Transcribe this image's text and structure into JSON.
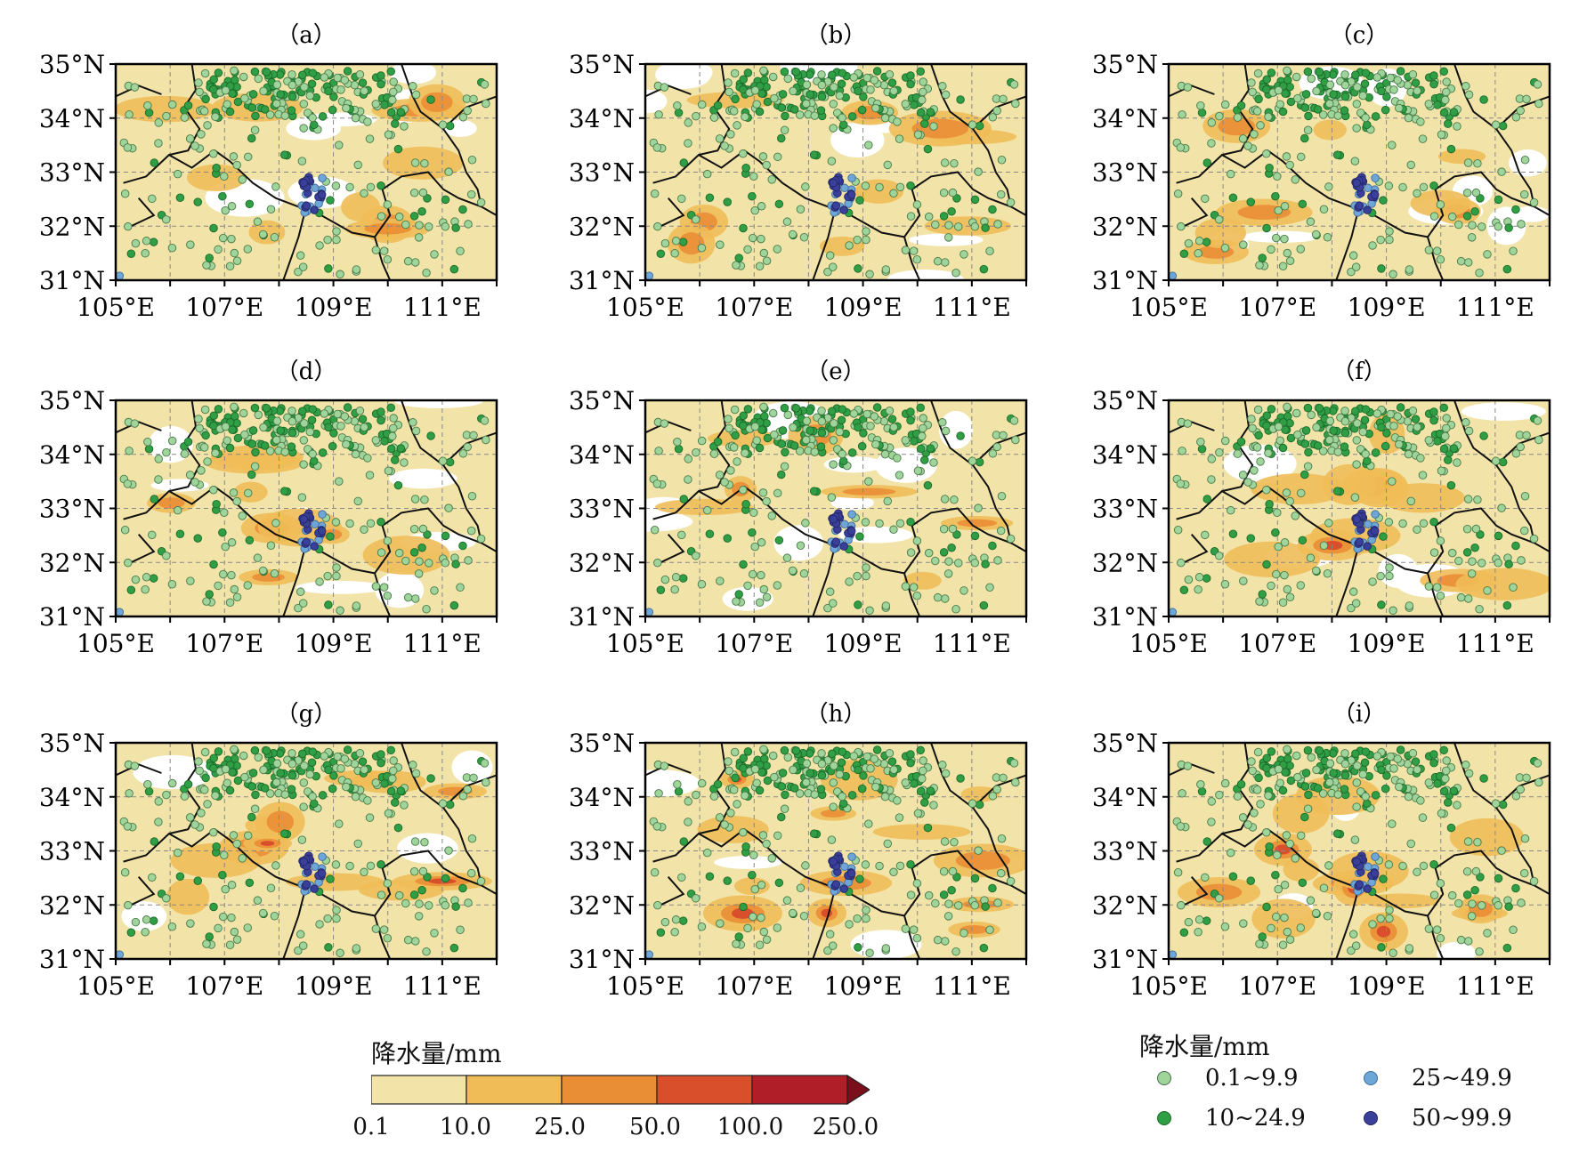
{
  "panels": [
    {
      "label": "（a）",
      "intensity": 1,
      "seed": 11
    },
    {
      "label": "（b）",
      "intensity": 0.8,
      "seed": 22
    },
    {
      "label": "（c）",
      "intensity": 0.6,
      "seed": 33
    },
    {
      "label": "（d）",
      "intensity": 0.8,
      "seed": 44
    },
    {
      "label": "（e）",
      "intensity": 0.5,
      "seed": 55
    },
    {
      "label": "（f）",
      "intensity": 1.2,
      "seed": 66
    },
    {
      "label": "（g）",
      "intensity": 1.4,
      "seed": 77
    },
    {
      "label": "（h）",
      "intensity": 1.5,
      "seed": 88
    },
    {
      "label": "（i）",
      "intensity": 1.6,
      "seed": 99
    }
  ],
  "axes": {
    "lat_labels": [
      "35°N",
      "34°N",
      "33°N",
      "32°N",
      "31°N"
    ],
    "lon_labels": [
      "105°E",
      "107°E",
      "109°E",
      "111°E"
    ],
    "lat_range": [
      31,
      35
    ],
    "lon_range": [
      105,
      112
    ]
  },
  "colorbar": {
    "title": "降水量/mm",
    "ticks": [
      "0.1",
      "10.0",
      "25.0",
      "50.0",
      "100.0",
      "250.0"
    ],
    "colors": [
      "#f2e4a8",
      "#efbc58",
      "#ea8e36",
      "#d94f2c",
      "#b01f28",
      "#7a0f1b"
    ]
  },
  "station_legend": {
    "title": "降水量/mm",
    "items": [
      {
        "label": "0.1~9.9",
        "color": "#9fd49a"
      },
      {
        "label": "25~49.9",
        "color": "#6fa6d8"
      },
      {
        "label": "10~24.9",
        "color": "#2f9e44"
      },
      {
        "label": "50~99.9",
        "color": "#3a3f99"
      }
    ]
  }
}
